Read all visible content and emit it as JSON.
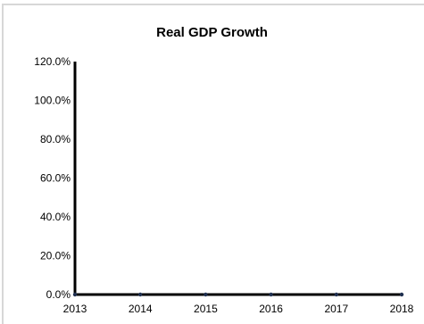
{
  "chart_data": {
    "type": "line",
    "title": "Real GDP Growth",
    "xlabel": "",
    "ylabel": "",
    "x": [
      "2013",
      "2014",
      "2015",
      "2016",
      "2017",
      "2018"
    ],
    "series": [
      {
        "values": [
          0,
          0,
          0,
          0,
          0,
          0
        ]
      }
    ],
    "ylim": [
      0,
      120
    ],
    "yticks": [
      0,
      20,
      40,
      60,
      80,
      100,
      120
    ],
    "ytick_labels": [
      "0.0%",
      "20.0%",
      "40.0%",
      "60.0%",
      "80.0%",
      "100.0%",
      "120.0%"
    ],
    "grid": false,
    "colors": {
      "axis": "#000000",
      "series": "#1f2f4f",
      "frame": "#d7d7d7"
    }
  }
}
